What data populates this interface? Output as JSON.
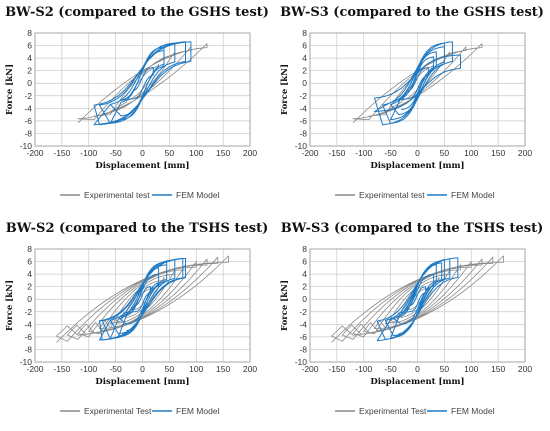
{
  "colors": {
    "experimental": "#8a8a8a",
    "fem": "#1f7ac4",
    "grid": "#c8c8c8"
  },
  "chart_data": [
    {
      "type": "line",
      "title": "BW-S2 (compared to the GSHS test)",
      "xlabel": "Displacement [mm]",
      "ylabel": "Force [kN]",
      "xlim": [
        -200,
        200
      ],
      "ylim": [
        -10,
        8
      ],
      "xticks": [
        -200,
        -150,
        -100,
        -50,
        0,
        50,
        100,
        150,
        200
      ],
      "yticks": [
        -10,
        -8,
        -6,
        -4,
        -2,
        0,
        2,
        4,
        6,
        8
      ],
      "grid": true,
      "legend_position": "bottom",
      "series": [
        {
          "name": "Experimental test",
          "color": "#8a8a8a",
          "pattern": "gshs",
          "amplitudes": [
            30,
            60,
            90,
            120
          ],
          "forces": [
            3,
            5,
            5.8,
            6.3
          ]
        },
        {
          "name": "FEM Model",
          "color": "#1f7ac4",
          "pattern": "fem",
          "amplitudes": [
            20,
            40,
            60,
            80,
            90,
            60,
            40
          ],
          "forces": [
            2.5,
            5.2,
            6.4,
            6.6,
            6.6,
            6.4,
            5.8
          ]
        }
      ]
    },
    {
      "type": "line",
      "title": "BW-S3 (compared to the GSHS test)",
      "xlabel": "Displacement [mm]",
      "ylabel": "Force [kN]",
      "xlim": [
        -200,
        200
      ],
      "ylim": [
        -10,
        8
      ],
      "xticks": [
        -200,
        -150,
        -100,
        -50,
        0,
        50,
        100,
        150,
        200
      ],
      "yticks": [
        -10,
        -8,
        -6,
        -4,
        -2,
        0,
        2,
        4,
        6,
        8
      ],
      "grid": true,
      "legend_position": "bottom",
      "series": [
        {
          "name": "Experimental test",
          "color": "#8a8a8a",
          "pattern": "gshs",
          "amplitudes": [
            30,
            60,
            90,
            120
          ],
          "forces": [
            3,
            5,
            5.8,
            6.3
          ]
        },
        {
          "name": "FEM Model",
          "color": "#1f7ac4",
          "pattern": "fem",
          "amplitudes": [
            20,
            35,
            50,
            65,
            80,
            50,
            30
          ],
          "forces": [
            2.5,
            5,
            6.4,
            6.6,
            4.5,
            5.8,
            4.2
          ]
        }
      ]
    },
    {
      "type": "line",
      "title": "BW-S2 (compared to the TSHS test)",
      "xlabel": "Displacement [mm]",
      "ylabel": "Force [kN]",
      "xlim": [
        -200,
        200
      ],
      "ylim": [
        -10,
        8
      ],
      "xticks": [
        -200,
        -150,
        -100,
        -50,
        0,
        50,
        100,
        150,
        200
      ],
      "yticks": [
        -10,
        -8,
        -6,
        -4,
        -2,
        0,
        2,
        4,
        6,
        8
      ],
      "grid": true,
      "legend_position": "bottom",
      "series": [
        {
          "name": "Experimental Test",
          "color": "#8a8a8a",
          "pattern": "tshs",
          "amplitudes": [
            20,
            40,
            60,
            80,
            100,
            120,
            140,
            160
          ],
          "forces": [
            2,
            3.5,
            4.6,
            5.5,
            6,
            6.4,
            6.7,
            6.9
          ]
        },
        {
          "name": "FEM Model",
          "color": "#1f7ac4",
          "pattern": "fem",
          "amplitudes": [
            15,
            30,
            45,
            60,
            75,
            80,
            60,
            45,
            30
          ],
          "forces": [
            2,
            4,
            5.5,
            6.3,
            6.5,
            6.5,
            6.3,
            6,
            5
          ]
        }
      ]
    },
    {
      "type": "line",
      "title": "BW-S3 (compared to the TSHS test)",
      "xlabel": "Displacement [mm]",
      "ylabel": "Force [kN]",
      "xlim": [
        -200,
        200
      ],
      "ylim": [
        -10,
        8
      ],
      "xticks": [
        -200,
        -150,
        -100,
        -50,
        0,
        50,
        100,
        150,
        200
      ],
      "yticks": [
        -10,
        -8,
        -6,
        -4,
        -2,
        0,
        2,
        4,
        6,
        8
      ],
      "grid": true,
      "legend_position": "bottom",
      "series": [
        {
          "name": "Experimental Test",
          "color": "#8a8a8a",
          "pattern": "tshs",
          "amplitudes": [
            20,
            40,
            60,
            80,
            100,
            120,
            140,
            160
          ],
          "forces": [
            2,
            3.5,
            4.6,
            5.5,
            6,
            6.4,
            6.7,
            6.9
          ]
        },
        {
          "name": "FEM Model",
          "color": "#1f7ac4",
          "pattern": "fem",
          "amplitudes": [
            15,
            30,
            45,
            60,
            75,
            50,
            35
          ],
          "forces": [
            2,
            4,
            5.8,
            6.4,
            6.6,
            6.2,
            5.5
          ]
        }
      ]
    }
  ]
}
